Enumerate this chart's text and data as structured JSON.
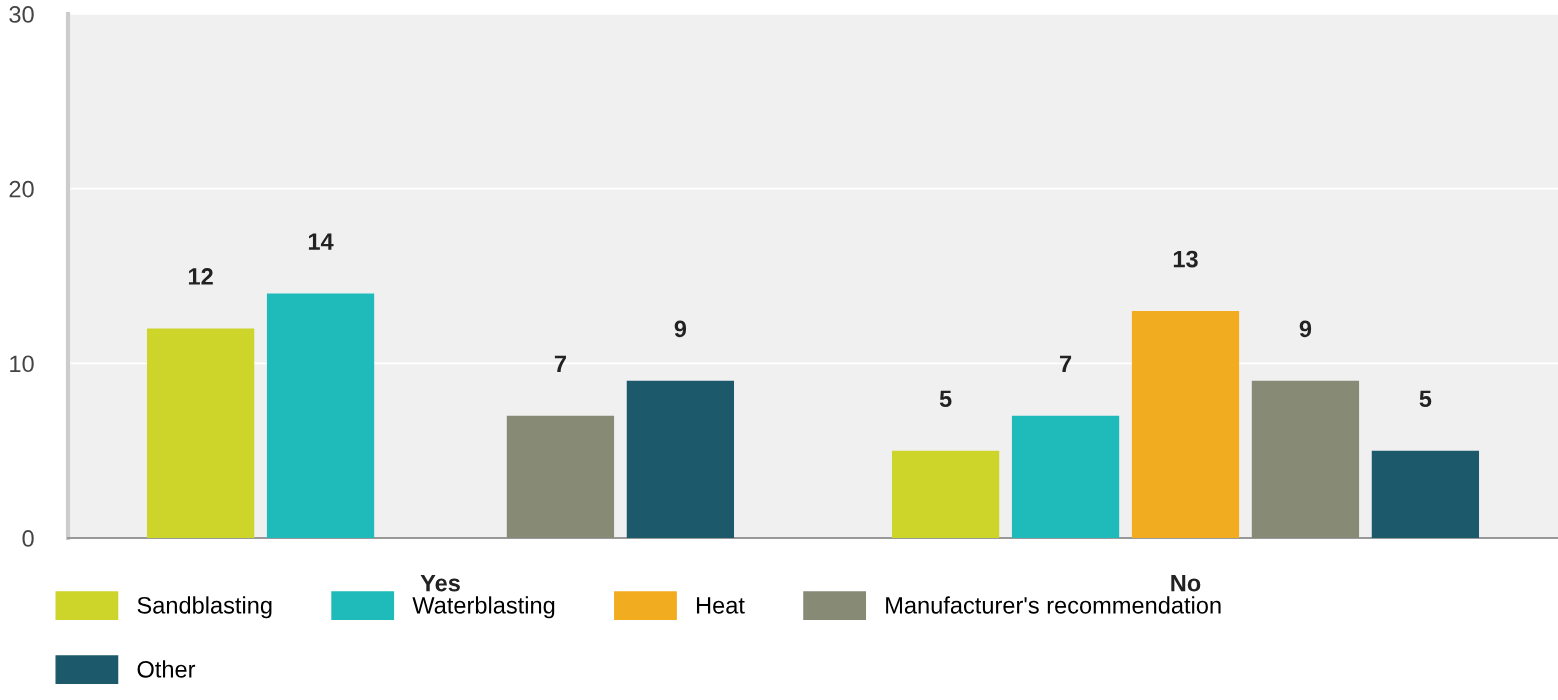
{
  "chart_data": {
    "type": "bar",
    "categories": [
      "Yes",
      "No"
    ],
    "series": [
      {
        "name": "Sandblasting",
        "color": "#cdd42a",
        "values": [
          12,
          5
        ]
      },
      {
        "name": "Waterblasting",
        "color": "#1fbaba",
        "values": [
          14,
          7
        ]
      },
      {
        "name": "Heat",
        "color": "#f2ac1f",
        "values": [
          null,
          13
        ]
      },
      {
        "name": "Manufacturer's recommendation",
        "color": "#878a75",
        "values": [
          7,
          9
        ]
      },
      {
        "name": "Other",
        "color": "#1c5a6b",
        "values": [
          9,
          5
        ]
      }
    ],
    "ylim": [
      0,
      30
    ],
    "yticks": [
      0,
      10,
      20,
      30
    ],
    "grid": "y",
    "legend": "bottom",
    "data_labels": true
  }
}
